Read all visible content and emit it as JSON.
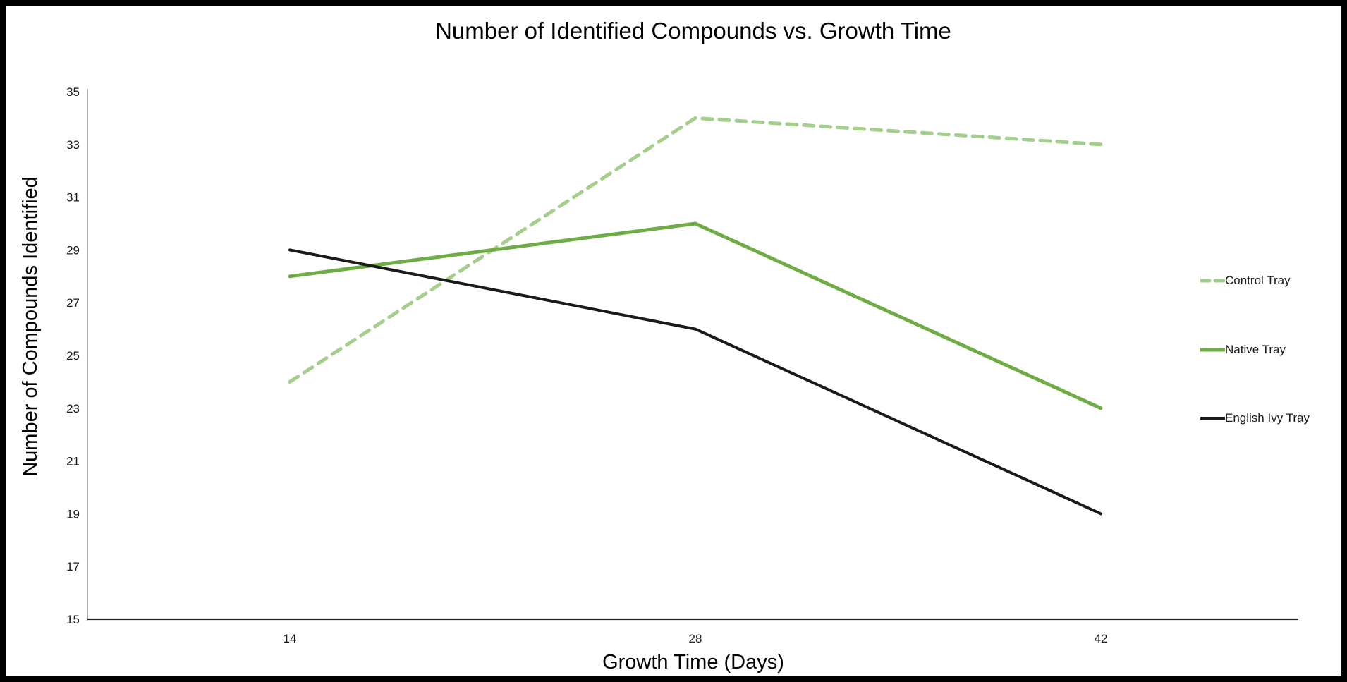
{
  "chart_data": {
    "type": "line",
    "title": "Number of Identified Compounds vs. Growth Time",
    "xlabel": "Growth Time (Days)",
    "ylabel": "Number of Compounds Identified",
    "x": [
      14,
      28,
      42
    ],
    "x_tick_labels": [
      "14",
      "28",
      "42"
    ],
    "ylim": [
      15,
      35
    ],
    "y_ticks": [
      15,
      17,
      19,
      21,
      23,
      25,
      27,
      29,
      31,
      33,
      35
    ],
    "grid": false,
    "legend_position": "right",
    "series": [
      {
        "name": "Control Tray",
        "values": [
          24,
          34,
          33
        ],
        "color": "#A4CE8C",
        "style": "dashed",
        "width": 5
      },
      {
        "name": "Native Tray",
        "values": [
          28,
          30,
          23
        ],
        "color": "#6FAC46",
        "style": "solid",
        "width": 5
      },
      {
        "name": "English Ivy Tray",
        "values": [
          29,
          26,
          19
        ],
        "color": "#1A1A1A",
        "style": "solid",
        "width": 4
      }
    ],
    "colors": {
      "x_axis": "#262626",
      "y_axis": "#8C8C8C",
      "tick_text": "#1A1A1A",
      "title_text": "#000000",
      "background": "#FFFFFF",
      "frame_border": "#000000"
    }
  }
}
